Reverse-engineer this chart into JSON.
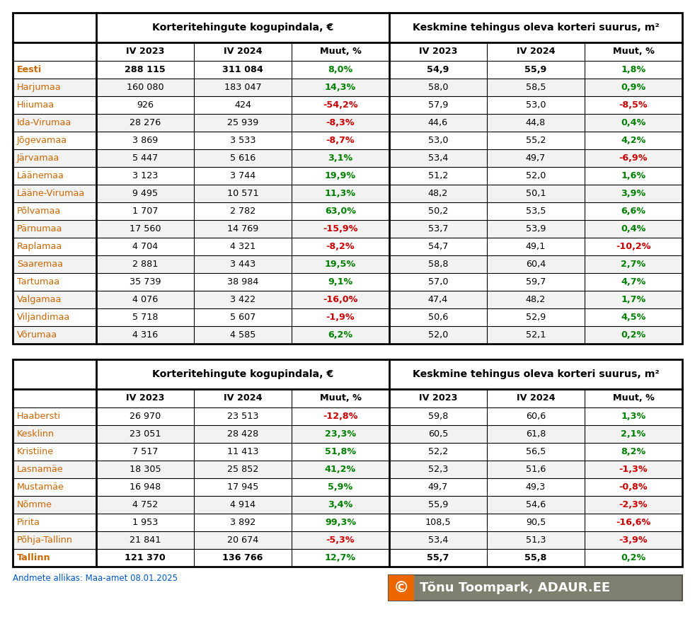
{
  "table1": {
    "header1": "Korteritehingute kogupindala, €",
    "header2": "Keskmine tehingus oleva korteri suurus, m²",
    "col_headers": [
      "IV 2023",
      "IV 2024",
      "Muut, %",
      "IV 2023",
      "IV 2024",
      "Muut, %"
    ],
    "rows": [
      {
        "name": "Eesti",
        "bold": true,
        "vals": [
          "288 115",
          "311 084",
          "8,0%",
          "54,9",
          "55,9",
          "1,8%"
        ],
        "colors": [
          "#000000",
          "#000000",
          "#008000",
          "#000000",
          "#000000",
          "#008000"
        ]
      },
      {
        "name": "Harjumaa",
        "bold": false,
        "vals": [
          "160 080",
          "183 047",
          "14,3%",
          "58,0",
          "58,5",
          "0,9%"
        ],
        "colors": [
          "#000000",
          "#000000",
          "#008000",
          "#000000",
          "#000000",
          "#008000"
        ]
      },
      {
        "name": "Hiiumaa",
        "bold": false,
        "vals": [
          "926",
          "424",
          "-54,2%",
          "57,9",
          "53,0",
          "-8,5%"
        ],
        "colors": [
          "#000000",
          "#000000",
          "#cc0000",
          "#000000",
          "#000000",
          "#cc0000"
        ]
      },
      {
        "name": "Ida-Virumaa",
        "bold": false,
        "vals": [
          "28 276",
          "25 939",
          "-8,3%",
          "44,6",
          "44,8",
          "0,4%"
        ],
        "colors": [
          "#000000",
          "#000000",
          "#cc0000",
          "#000000",
          "#000000",
          "#008000"
        ]
      },
      {
        "name": "Jõgevamaa",
        "bold": false,
        "vals": [
          "3 869",
          "3 533",
          "-8,7%",
          "53,0",
          "55,2",
          "4,2%"
        ],
        "colors": [
          "#000000",
          "#000000",
          "#cc0000",
          "#000000",
          "#000000",
          "#008000"
        ]
      },
      {
        "name": "Järvamaa",
        "bold": false,
        "vals": [
          "5 447",
          "5 616",
          "3,1%",
          "53,4",
          "49,7",
          "-6,9%"
        ],
        "colors": [
          "#000000",
          "#000000",
          "#008000",
          "#000000",
          "#000000",
          "#cc0000"
        ]
      },
      {
        "name": "Läänemaa",
        "bold": false,
        "vals": [
          "3 123",
          "3 744",
          "19,9%",
          "51,2",
          "52,0",
          "1,6%"
        ],
        "colors": [
          "#000000",
          "#000000",
          "#008000",
          "#000000",
          "#000000",
          "#008000"
        ]
      },
      {
        "name": "Lääne-Virumaa",
        "bold": false,
        "vals": [
          "9 495",
          "10 571",
          "11,3%",
          "48,2",
          "50,1",
          "3,9%"
        ],
        "colors": [
          "#000000",
          "#000000",
          "#008000",
          "#000000",
          "#000000",
          "#008000"
        ]
      },
      {
        "name": "Põlvamaa",
        "bold": false,
        "vals": [
          "1 707",
          "2 782",
          "63,0%",
          "50,2",
          "53,5",
          "6,6%"
        ],
        "colors": [
          "#000000",
          "#000000",
          "#008000",
          "#000000",
          "#000000",
          "#008000"
        ]
      },
      {
        "name": "Pärnumaa",
        "bold": false,
        "vals": [
          "17 560",
          "14 769",
          "-15,9%",
          "53,7",
          "53,9",
          "0,4%"
        ],
        "colors": [
          "#000000",
          "#000000",
          "#cc0000",
          "#000000",
          "#000000",
          "#008000"
        ]
      },
      {
        "name": "Raplamaa",
        "bold": false,
        "vals": [
          "4 704",
          "4 321",
          "-8,2%",
          "54,7",
          "49,1",
          "-10,2%"
        ],
        "colors": [
          "#000000",
          "#000000",
          "#cc0000",
          "#000000",
          "#000000",
          "#cc0000"
        ]
      },
      {
        "name": "Saaremaa",
        "bold": false,
        "vals": [
          "2 881",
          "3 443",
          "19,5%",
          "58,8",
          "60,4",
          "2,7%"
        ],
        "colors": [
          "#000000",
          "#000000",
          "#008000",
          "#000000",
          "#000000",
          "#008000"
        ]
      },
      {
        "name": "Tartumaa",
        "bold": false,
        "vals": [
          "35 739",
          "38 984",
          "9,1%",
          "57,0",
          "59,7",
          "4,7%"
        ],
        "colors": [
          "#000000",
          "#000000",
          "#008000",
          "#000000",
          "#000000",
          "#008000"
        ]
      },
      {
        "name": "Valgamaa",
        "bold": false,
        "vals": [
          "4 076",
          "3 422",
          "-16,0%",
          "47,4",
          "48,2",
          "1,7%"
        ],
        "colors": [
          "#000000",
          "#000000",
          "#cc0000",
          "#000000",
          "#000000",
          "#008000"
        ]
      },
      {
        "name": "Viljandimaa",
        "bold": false,
        "vals": [
          "5 718",
          "5 607",
          "-1,9%",
          "50,6",
          "52,9",
          "4,5%"
        ],
        "colors": [
          "#000000",
          "#000000",
          "#cc0000",
          "#000000",
          "#000000",
          "#008000"
        ]
      },
      {
        "name": "Võrumaa",
        "bold": false,
        "vals": [
          "4 316",
          "4 585",
          "6,2%",
          "52,0",
          "52,1",
          "0,2%"
        ],
        "colors": [
          "#000000",
          "#000000",
          "#008000",
          "#000000",
          "#000000",
          "#008000"
        ]
      }
    ]
  },
  "table2": {
    "header1": "Korteritehingute kogupindala, €",
    "header2": "Keskmine tehingus oleva korteri suurus, m²",
    "col_headers": [
      "IV 2023",
      "IV 2024",
      "Muut, %",
      "IV 2023",
      "IV 2024",
      "Muut, %"
    ],
    "rows": [
      {
        "name": "Haabersti",
        "bold": false,
        "vals": [
          "26 970",
          "23 513",
          "-12,8%",
          "59,8",
          "60,6",
          "1,3%"
        ],
        "colors": [
          "#000000",
          "#000000",
          "#cc0000",
          "#000000",
          "#000000",
          "#008000"
        ]
      },
      {
        "name": "Kesklinn",
        "bold": false,
        "vals": [
          "23 051",
          "28 428",
          "23,3%",
          "60,5",
          "61,8",
          "2,1%"
        ],
        "colors": [
          "#000000",
          "#000000",
          "#008000",
          "#000000",
          "#000000",
          "#008000"
        ]
      },
      {
        "name": "Kristiine",
        "bold": false,
        "vals": [
          "7 517",
          "11 413",
          "51,8%",
          "52,2",
          "56,5",
          "8,2%"
        ],
        "colors": [
          "#000000",
          "#000000",
          "#008000",
          "#000000",
          "#000000",
          "#008000"
        ]
      },
      {
        "name": "Lasnamäe",
        "bold": false,
        "vals": [
          "18 305",
          "25 852",
          "41,2%",
          "52,3",
          "51,6",
          "-1,3%"
        ],
        "colors": [
          "#000000",
          "#000000",
          "#008000",
          "#000000",
          "#000000",
          "#cc0000"
        ]
      },
      {
        "name": "Mustamäe",
        "bold": false,
        "vals": [
          "16 948",
          "17 945",
          "5,9%",
          "49,7",
          "49,3",
          "-0,8%"
        ],
        "colors": [
          "#000000",
          "#000000",
          "#008000",
          "#000000",
          "#000000",
          "#cc0000"
        ]
      },
      {
        "name": "Nõmme",
        "bold": false,
        "vals": [
          "4 752",
          "4 914",
          "3,4%",
          "55,9",
          "54,6",
          "-2,3%"
        ],
        "colors": [
          "#000000",
          "#000000",
          "#008000",
          "#000000",
          "#000000",
          "#cc0000"
        ]
      },
      {
        "name": "Pirita",
        "bold": false,
        "vals": [
          "1 953",
          "3 892",
          "99,3%",
          "108,5",
          "90,5",
          "-16,6%"
        ],
        "colors": [
          "#000000",
          "#000000",
          "#008000",
          "#000000",
          "#000000",
          "#cc0000"
        ]
      },
      {
        "name": "Põhja-Tallinn",
        "bold": false,
        "vals": [
          "21 841",
          "20 674",
          "-5,3%",
          "53,4",
          "51,3",
          "-3,9%"
        ],
        "colors": [
          "#000000",
          "#000000",
          "#cc0000",
          "#000000",
          "#000000",
          "#cc0000"
        ]
      },
      {
        "name": "Tallinn",
        "bold": true,
        "vals": [
          "121 370",
          "136 766",
          "12,7%",
          "55,7",
          "55,8",
          "0,2%"
        ],
        "colors": [
          "#000000",
          "#000000",
          "#008000",
          "#000000",
          "#000000",
          "#008000"
        ]
      }
    ]
  },
  "source_text": "Andmete allikas: Maa-amet 08.01.2025",
  "watermark_text": "Tõnu Toompark, ADAUR.EE",
  "bg_color": "#ffffff",
  "border_color": "#000000",
  "name_col_color": "#cc6600",
  "watermark_bg": "#808070",
  "watermark_orange": "#ee6600",
  "watermark_text_color": "#ffffff",
  "source_text_color": "#0055cc"
}
